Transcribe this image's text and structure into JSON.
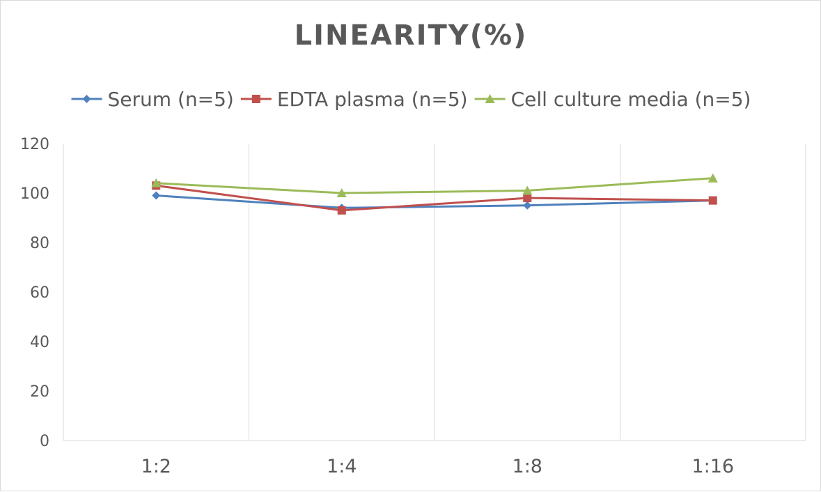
{
  "chart_data": {
    "type": "line",
    "title": "LINEARITY(%)",
    "xlabel": "",
    "ylabel": "",
    "categories": [
      "1:2",
      "1:4",
      "1:8",
      "1:16"
    ],
    "ylim": [
      0,
      120
    ],
    "yticks": [
      "0",
      "20",
      "40",
      "60",
      "80",
      "100",
      "120"
    ],
    "grid": "vertical",
    "legend_position": "top",
    "series": [
      {
        "name": "Serum (n=5)",
        "values": [
          99,
          94,
          95,
          97
        ],
        "color": "#4f81bd",
        "marker": "diamond"
      },
      {
        "name": "EDTA plasma (n=5)",
        "values": [
          103,
          93,
          98,
          97
        ],
        "color": "#c0504d",
        "marker": "square"
      },
      {
        "name": "Cell culture media (n=5)",
        "values": [
          104,
          100,
          101,
          106
        ],
        "color": "#9bbb59",
        "marker": "triangle"
      }
    ]
  }
}
